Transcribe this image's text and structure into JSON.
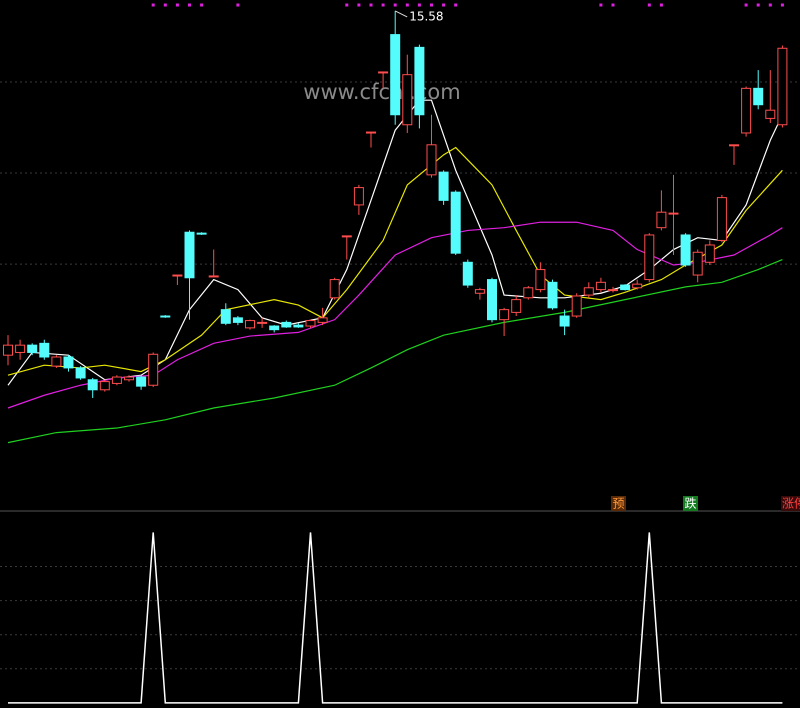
{
  "chart_data": [
    {
      "type": "candlestick",
      "watermark": "www.cfchi.com",
      "ylim": [
        10.1,
        15.7
      ],
      "yticks": [
        12.8,
        13.8,
        14.8
      ],
      "grid": true,
      "up_color": "#ff4d4d",
      "down_color": "#54fcfc",
      "open": [
        11.8,
        11.83,
        11.91,
        11.93,
        11.68,
        11.78,
        11.66,
        11.53,
        11.42,
        11.49,
        11.53,
        11.56,
        11.47,
        12.23,
        12.68,
        13.15,
        13.14,
        12.67,
        12.3,
        12.21,
        12.1,
        12.16,
        12.12,
        12.16,
        12.13,
        12.12,
        12.16,
        12.43,
        13.11,
        13.45,
        14.25,
        14.91,
        15.32,
        14.33,
        15.18,
        13.78,
        13.81,
        13.59,
        12.82,
        12.48,
        12.63,
        12.19,
        12.27,
        12.43,
        12.52,
        12.6,
        12.23,
        12.23,
        12.46,
        12.52,
        12.52,
        12.57,
        12.54,
        12.63,
        13.2,
        13.36,
        13.12,
        12.68,
        12.82,
        13.06,
        14.11,
        14.24,
        14.73,
        14.4,
        14.33
      ],
      "high": [
        12.02,
        11.97,
        11.93,
        11.97,
        11.8,
        11.8,
        11.68,
        11.55,
        11.53,
        11.58,
        11.58,
        11.58,
        11.83,
        12.24,
        12.68,
        13.17,
        13.15,
        12.96,
        12.37,
        12.23,
        12.19,
        12.21,
        12.13,
        12.18,
        12.15,
        12.19,
        12.32,
        12.65,
        13.11,
        13.67,
        14.25,
        14.91,
        15.58,
        15.1,
        15.21,
        14.44,
        13.83,
        13.61,
        12.85,
        12.54,
        12.65,
        12.32,
        12.46,
        12.56,
        12.82,
        12.63,
        12.3,
        12.48,
        12.6,
        12.65,
        12.55,
        12.58,
        12.63,
        13.14,
        13.61,
        13.78,
        13.14,
        12.96,
        13.06,
        13.56,
        14.11,
        14.75,
        14.93,
        14.93,
        15.2
      ],
      "low": [
        11.69,
        11.75,
        11.8,
        11.75,
        11.66,
        11.62,
        11.53,
        11.33,
        11.4,
        11.47,
        11.51,
        11.42,
        11.45,
        12.21,
        12.57,
        12.19,
        13.12,
        12.66,
        12.13,
        12.13,
        12.08,
        12.1,
        12.05,
        12.1,
        12.1,
        12.1,
        12.13,
        12.41,
        12.85,
        13.34,
        14.08,
        14.73,
        14.33,
        14.24,
        14.29,
        13.75,
        13.45,
        12.9,
        12.54,
        12.41,
        12.16,
        12.01,
        12.23,
        12.41,
        12.49,
        12.3,
        12.02,
        12.21,
        12.43,
        12.49,
        12.49,
        12.51,
        12.52,
        12.6,
        13.17,
        12.9,
        12.77,
        12.6,
        12.79,
        13.04,
        13.89,
        14.2,
        14.5,
        14.35,
        14.3
      ],
      "close": [
        11.91,
        11.91,
        11.83,
        11.78,
        11.78,
        11.66,
        11.55,
        11.42,
        11.51,
        11.56,
        11.56,
        11.46,
        11.81,
        12.22,
        12.68,
        12.65,
        13.13,
        12.67,
        12.15,
        12.16,
        12.18,
        12.16,
        12.08,
        12.11,
        12.11,
        12.18,
        12.21,
        12.63,
        13.11,
        13.64,
        14.25,
        14.91,
        14.44,
        14.88,
        14.44,
        14.11,
        13.5,
        12.92,
        12.57,
        12.52,
        12.19,
        12.3,
        12.41,
        12.54,
        12.74,
        12.32,
        12.12,
        12.45,
        12.54,
        12.6,
        12.52,
        12.52,
        12.58,
        13.12,
        13.37,
        13.36,
        12.79,
        12.93,
        13.01,
        13.53,
        14.11,
        14.73,
        14.55,
        14.49,
        15.17
      ],
      "series": [
        {
          "color": "#ffffff",
          "x": [
            0,
            2,
            5,
            8,
            11,
            13,
            15,
            17,
            19,
            21,
            23,
            26,
            28,
            30,
            32,
            34,
            35,
            37,
            40,
            41,
            44,
            46,
            49,
            51,
            53,
            55,
            57,
            59,
            61,
            63,
            64
          ],
          "values": [
            11.47,
            11.83,
            11.8,
            11.53,
            11.58,
            11.75,
            12.3,
            12.63,
            12.52,
            12.21,
            12.13,
            12.21,
            12.74,
            13.5,
            14.27,
            14.6,
            14.6,
            13.83,
            12.9,
            12.46,
            12.43,
            12.43,
            12.48,
            12.56,
            12.74,
            12.96,
            13.09,
            13.06,
            13.45,
            14.16,
            14.44
          ]
        },
        {
          "color": "#e6e600",
          "x": [
            0,
            3,
            6,
            8,
            11,
            13,
            16,
            18,
            22,
            24,
            26,
            28,
            31,
            33,
            36,
            37,
            40,
            42,
            44,
            46,
            49,
            51,
            54,
            56,
            59,
            61,
            64
          ],
          "values": [
            11.58,
            11.69,
            11.66,
            11.69,
            11.62,
            11.75,
            12.02,
            12.3,
            12.41,
            12.35,
            12.21,
            12.52,
            13.06,
            13.67,
            14.0,
            14.08,
            13.67,
            13.17,
            12.68,
            12.46,
            12.41,
            12.49,
            12.63,
            12.79,
            13.01,
            13.39,
            13.83
          ]
        },
        {
          "color": "#e020e0",
          "x": [
            0,
            3,
            6,
            9,
            12,
            14,
            17,
            20,
            24,
            27,
            29,
            32,
            35,
            38,
            41,
            44,
            47,
            50,
            52,
            55,
            57,
            60,
            63,
            64
          ],
          "values": [
            11.22,
            11.36,
            11.47,
            11.55,
            11.58,
            11.75,
            11.93,
            12.01,
            12.05,
            12.19,
            12.46,
            12.9,
            13.09,
            13.17,
            13.2,
            13.26,
            13.26,
            13.17,
            12.96,
            12.79,
            12.82,
            12.9,
            13.12,
            13.2
          ]
        },
        {
          "color": "#20d020",
          "x": [
            0,
            4,
            9,
            13,
            17,
            22,
            27,
            30,
            33,
            36,
            41,
            46,
            51,
            56,
            59,
            62,
            64
          ],
          "values": [
            10.84,
            10.95,
            11.0,
            11.09,
            11.22,
            11.33,
            11.47,
            11.66,
            11.86,
            12.02,
            12.16,
            12.27,
            12.41,
            12.55,
            12.6,
            12.74,
            12.85
          ]
        }
      ],
      "markers": {
        "color": "#e020e0",
        "x": [
          12,
          13,
          14,
          15,
          16,
          19,
          28,
          29,
          30,
          31,
          32,
          33,
          34,
          35,
          36,
          37,
          49,
          50,
          53,
          54,
          61,
          62,
          63,
          64
        ]
      },
      "signals": [
        {
          "text": "预",
          "color": "#ff9a3c"
        },
        {
          "text": "跌",
          "color": "#ffffff"
        },
        {
          "text": "涨停",
          "color": "#ff4040"
        }
      ]
    },
    {
      "type": "line",
      "color": "#ffffff",
      "ylim": [
        -0.03,
        1.12
      ],
      "yticks": [
        0.2,
        0.4,
        0.6,
        0.8
      ],
      "grid": true,
      "values": [
        0,
        0,
        0,
        0,
        0,
        0,
        0,
        0,
        0,
        0,
        0,
        0,
        1,
        0,
        0,
        0,
        0,
        0,
        0,
        0,
        0,
        0,
        0,
        0,
        0,
        1,
        0,
        0,
        0,
        0,
        0,
        0,
        0,
        0,
        0,
        0,
        0,
        0,
        0,
        0,
        0,
        0,
        0,
        0,
        0,
        0,
        0,
        0,
        0,
        0,
        0,
        0,
        0,
        1,
        0,
        0,
        0,
        0,
        0,
        0,
        0,
        0,
        0,
        0,
        0
      ]
    }
  ]
}
